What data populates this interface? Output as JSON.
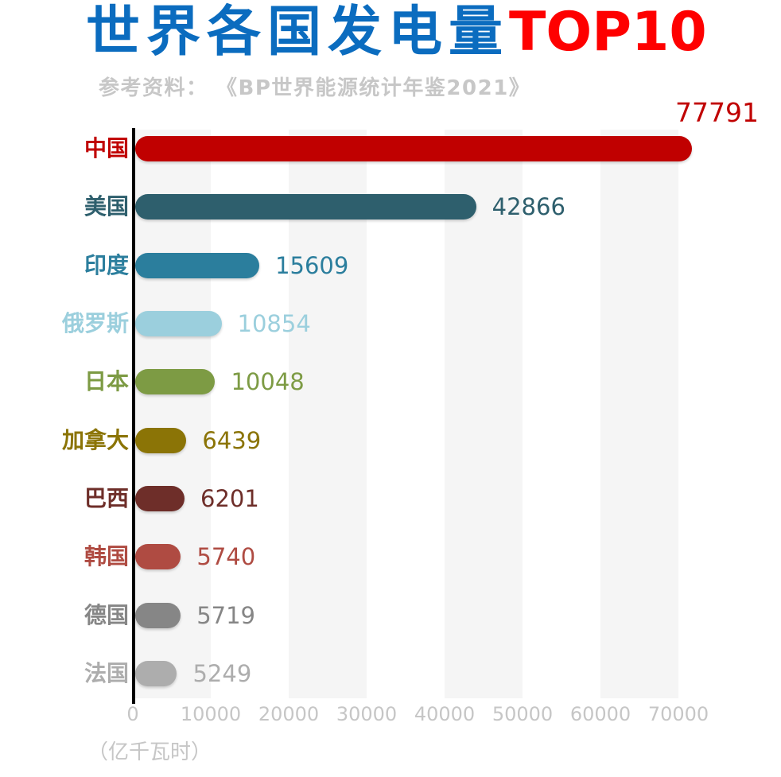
{
  "header": {
    "title_main": "世界各国发电量",
    "title_highlight": "TOP10",
    "title_main_color": "#0b6cbf",
    "title_highlight_color": "#fe0000",
    "subtitle": "参考资料： 《BP世界能源统计年鉴2021》",
    "subtitle_color": "#c7c7c7"
  },
  "chart_data": {
    "type": "bar",
    "orientation": "horizontal",
    "title": "世界各国发电量TOP10",
    "source_note": "参考资料： 《BP世界能源统计年鉴2021》",
    "unit_label": "（亿千瓦时）",
    "categories": [
      "中国",
      "美国",
      "印度",
      "俄罗斯",
      "日本",
      "加拿大",
      "巴西",
      "韩国",
      "德国",
      "法国"
    ],
    "values": [
      77791,
      42866,
      15609,
      10854,
      10048,
      6439,
      6201,
      5740,
      5719,
      5249
    ],
    "bar_colors": [
      "#c00000",
      "#2e5f6d",
      "#2b7e9d",
      "#9bcfdd",
      "#7d9b44",
      "#8b7406",
      "#6e2e29",
      "#af4b42",
      "#868686",
      "#adadad"
    ],
    "x_ticks": [
      0,
      10000,
      20000,
      30000,
      40000,
      50000,
      60000,
      70000
    ],
    "xlim": [
      0,
      80000
    ],
    "axis_tick_color": "#c6c6c6",
    "stripe_color": "#f5f5f5",
    "grid": "alternating vertical bands",
    "value_label_position": "right of bar end; top value above bar",
    "legend": "none"
  }
}
